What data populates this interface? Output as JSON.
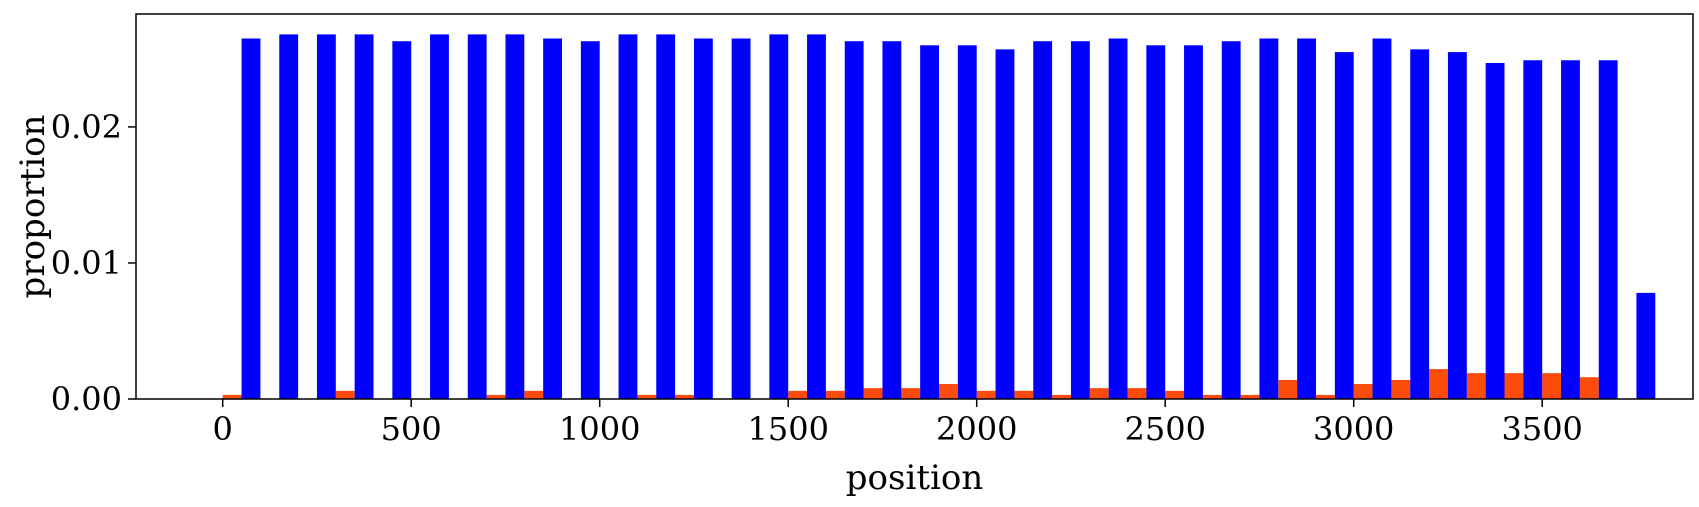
{
  "chart_data": {
    "type": "bar",
    "title": "",
    "xlabel": "position",
    "ylabel": "proportion",
    "xlim": [
      -230,
      3900
    ],
    "ylim": [
      0,
      0.0283
    ],
    "x_ticks": [
      0,
      500,
      1000,
      1500,
      2000,
      2500,
      3000,
      3500
    ],
    "x_tick_labels": [
      "0",
      "500",
      "1000",
      "1500",
      "2000",
      "2500",
      "3000",
      "3500"
    ],
    "y_ticks": [
      0,
      0.01,
      0.02
    ],
    "y_tick_labels": [
      "0.00",
      "0.01",
      "0.02"
    ],
    "bin_width": 100,
    "bin_starts": [
      0,
      100,
      200,
      300,
      400,
      500,
      600,
      700,
      800,
      900,
      1000,
      1100,
      1200,
      1300,
      1400,
      1500,
      1600,
      1700,
      1800,
      1900,
      2000,
      2100,
      2200,
      2300,
      2400,
      2500,
      2600,
      2700,
      2800,
      2900,
      3000,
      3100,
      3200,
      3300,
      3400,
      3500,
      3600,
      3700
    ],
    "grid": false,
    "legend": "none",
    "series": [
      {
        "color": "#fc4c0c",
        "values": [
          0.0003,
          0,
          0,
          0.0006,
          0,
          0,
          0,
          0.0003,
          0.0006,
          0,
          0,
          0.0003,
          0.0003,
          0,
          0,
          0.0006,
          0.0006,
          0.0008,
          0.0008,
          0.0011,
          0.0006,
          0.0006,
          0.0003,
          0.0008,
          0.0008,
          0.0006,
          0.0003,
          0.0003,
          0.0014,
          0.0003,
          0.0011,
          0.0014,
          0.0022,
          0.0019,
          0.0019,
          0.0019,
          0.0016,
          0
        ]
      },
      {
        "color": "#0000ff",
        "values": [
          0.0265,
          0.0268,
          0.0268,
          0.0268,
          0.0263,
          0.0268,
          0.0268,
          0.0268,
          0.0265,
          0.0263,
          0.0268,
          0.0268,
          0.0265,
          0.0265,
          0.0268,
          0.0268,
          0.0263,
          0.0263,
          0.026,
          0.026,
          0.0257,
          0.0263,
          0.0263,
          0.0265,
          0.026,
          0.026,
          0.0263,
          0.0265,
          0.0265,
          0.0255,
          0.0265,
          0.0257,
          0.0255,
          0.0247,
          0.0249,
          0.0249,
          0.0249,
          0.0078
        ]
      }
    ]
  }
}
